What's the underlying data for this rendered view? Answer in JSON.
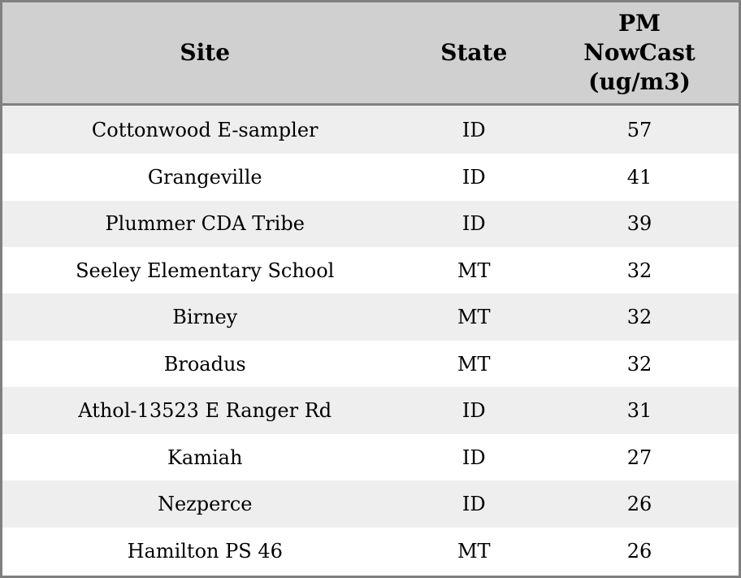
{
  "colors": {
    "header_bg": "#d0d0d0",
    "border": "#808080",
    "row_stripe": "#eeeeee",
    "row_plain": "#ffffff",
    "text": "#000000"
  },
  "table": {
    "columns": [
      {
        "label": "Site"
      },
      {
        "label": "State"
      },
      {
        "label": "PM NowCast (ug/m3)"
      }
    ],
    "rows": [
      {
        "site": "Cottonwood E-sampler",
        "state": "ID",
        "pm_nowcast": "57"
      },
      {
        "site": "Grangeville",
        "state": "ID",
        "pm_nowcast": "41"
      },
      {
        "site": "Plummer CDA Tribe",
        "state": "ID",
        "pm_nowcast": "39"
      },
      {
        "site": "Seeley Elementary School",
        "state": "MT",
        "pm_nowcast": "32"
      },
      {
        "site": "Birney",
        "state": "MT",
        "pm_nowcast": "32"
      },
      {
        "site": "Broadus",
        "state": "MT",
        "pm_nowcast": "32"
      },
      {
        "site": "Athol-13523 E Ranger Rd",
        "state": "ID",
        "pm_nowcast": "31"
      },
      {
        "site": "Kamiah",
        "state": "ID",
        "pm_nowcast": "27"
      },
      {
        "site": "Nezperce",
        "state": "ID",
        "pm_nowcast": "26"
      },
      {
        "site": "Hamilton PS 46",
        "state": "MT",
        "pm_nowcast": "26"
      }
    ]
  },
  "chart_data": {
    "type": "table",
    "title": "",
    "columns": [
      "Site",
      "State",
      "PM NowCast (ug/m3)"
    ],
    "rows": [
      [
        "Cottonwood E-sampler",
        "ID",
        57
      ],
      [
        "Grangeville",
        "ID",
        41
      ],
      [
        "Plummer CDA Tribe",
        "ID",
        39
      ],
      [
        "Seeley Elementary School",
        "MT",
        32
      ],
      [
        "Birney",
        "MT",
        32
      ],
      [
        "Broadus",
        "MT",
        32
      ],
      [
        "Athol-13523 E Ranger Rd",
        "ID",
        31
      ],
      [
        "Kamiah",
        "ID",
        27
      ],
      [
        "Nezperce",
        "ID",
        26
      ],
      [
        "Hamilton PS 46",
        "MT",
        26
      ]
    ],
    "layout_hints": {
      "striped_rows": true,
      "alignment": "center",
      "header_background": "#d0d0d0",
      "stripe_background": "#eeeeee",
      "border_color": "#808080"
    }
  }
}
